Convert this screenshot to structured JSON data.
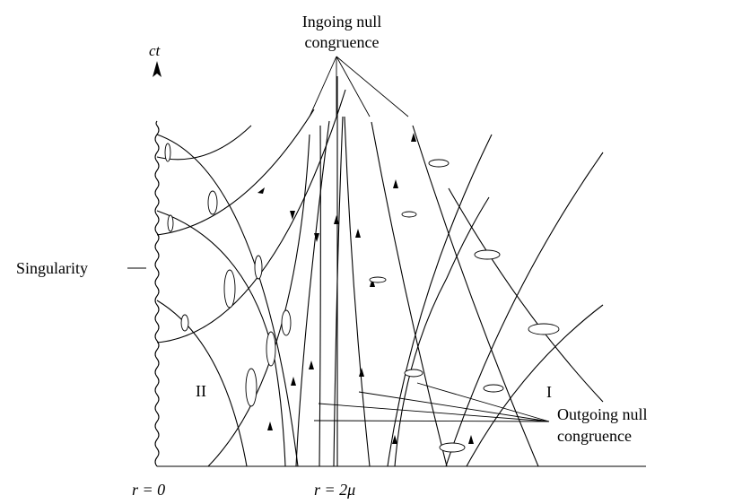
{
  "labels": {
    "time_axis": "ct",
    "ingoing_line1": "Ingoing null",
    "ingoing_line2": "congruence",
    "singularity": "Singularity",
    "region_two": "II",
    "region_one": "I",
    "outgoing_line1": "Outgoing null",
    "outgoing_line2": "congruence",
    "r_zero": "r = 0",
    "r_horizon": "r = 2μ"
  }
}
